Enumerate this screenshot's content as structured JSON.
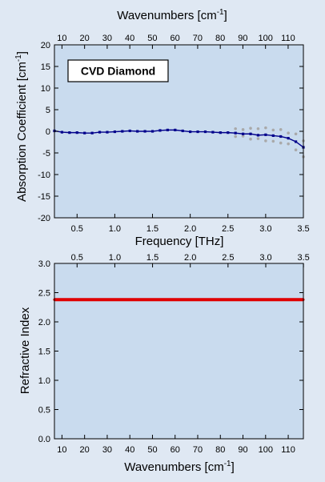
{
  "figure": {
    "background": "#dfe8f3",
    "plot_background": "#c9dbee"
  },
  "chart_data": [
    {
      "type": "scatter",
      "panel": "top",
      "sample_label": "CVD Diamond",
      "x_label": "Frequency  [THz]",
      "y_label": "Absorption Coefficient [cm",
      "y_label_sup": "-1",
      "y_label_end": "]",
      "top_axis_label": "Wavenumbers  [cm",
      "top_axis_label_sup": "-1",
      "top_axis_label_end": "]",
      "xlim": [
        0.2,
        3.5
      ],
      "ylim": [
        -20,
        20
      ],
      "x_ticks": [
        "0.5",
        "1.0",
        "1.5",
        "2.0",
        "2.5",
        "3.0",
        "3.5"
      ],
      "y_ticks": [
        "20",
        "15",
        "10",
        "5",
        "0",
        "-5",
        "-10",
        "-15",
        "-20"
      ],
      "top_ticks": [
        "10",
        "20",
        "30",
        "40",
        "50",
        "60",
        "70",
        "80",
        "90",
        "100",
        "110"
      ],
      "grid": false,
      "colors": {
        "mean": "#00008b",
        "runs": "#a9a9a9"
      },
      "series": [
        {
          "role": "mean",
          "points": [
            [
              0.2,
              0.1
            ],
            [
              0.3,
              -0.2
            ],
            [
              0.4,
              -0.3
            ],
            [
              0.5,
              -0.3
            ],
            [
              0.6,
              -0.4
            ],
            [
              0.7,
              -0.4
            ],
            [
              0.8,
              -0.2
            ],
            [
              0.9,
              -0.2
            ],
            [
              1.0,
              -0.1
            ],
            [
              1.1,
              0.0
            ],
            [
              1.2,
              0.1
            ],
            [
              1.3,
              0.0
            ],
            [
              1.4,
              0.0
            ],
            [
              1.5,
              0.0
            ],
            [
              1.6,
              0.2
            ],
            [
              1.7,
              0.3
            ],
            [
              1.8,
              0.3
            ],
            [
              1.9,
              0.1
            ],
            [
              2.0,
              -0.1
            ],
            [
              2.1,
              -0.1
            ],
            [
              2.2,
              -0.1
            ],
            [
              2.3,
              -0.2
            ],
            [
              2.4,
              -0.3
            ],
            [
              2.5,
              -0.3
            ],
            [
              2.6,
              -0.4
            ],
            [
              2.7,
              -0.6
            ],
            [
              2.8,
              -0.6
            ],
            [
              2.9,
              -0.9
            ],
            [
              3.0,
              -0.8
            ],
            [
              3.1,
              -1.0
            ],
            [
              3.2,
              -1.2
            ],
            [
              3.3,
              -1.6
            ],
            [
              3.4,
              -2.4
            ],
            [
              3.5,
              -3.7
            ]
          ]
        },
        {
          "role": "runs",
          "points": [
            [
              2.6,
              0.6
            ],
            [
              2.7,
              -1.1
            ],
            [
              2.8,
              0.7
            ],
            [
              2.9,
              -1.7
            ],
            [
              3.0,
              0.8
            ],
            [
              3.1,
              -2.3
            ],
            [
              3.2,
              0.4
            ],
            [
              3.3,
              -2.9
            ],
            [
              3.4,
              -0.6
            ],
            [
              3.5,
              -5.9
            ],
            [
              2.6,
              -1.2
            ],
            [
              2.7,
              0.4
            ],
            [
              2.8,
              -1.8
            ],
            [
              2.9,
              0.6
            ],
            [
              3.0,
              -2.2
            ],
            [
              3.1,
              0.3
            ],
            [
              3.2,
              -2.7
            ],
            [
              3.3,
              -0.4
            ],
            [
              3.4,
              -4.3
            ],
            [
              3.5,
              -2.2
            ]
          ]
        }
      ]
    },
    {
      "type": "scatter",
      "panel": "bottom",
      "x_label": "Wavenumbers [cm",
      "x_label_sup": "-1",
      "x_label_end": "]",
      "y_label": "Refractive Index",
      "top_axis_label": "",
      "xlim": [
        6.67,
        116.7
      ],
      "ylim": [
        0.0,
        3.0
      ],
      "x_ticks": [
        "10",
        "20",
        "30",
        "40",
        "50",
        "60",
        "70",
        "80",
        "90",
        "100",
        "110"
      ],
      "y_ticks": [
        "3.0",
        "2.5",
        "2.0",
        "1.5",
        "1.0",
        "0.5",
        "0.0"
      ],
      "top_ticks": [
        "0.5",
        "1.0",
        "1.5",
        "2.0",
        "2.5",
        "3.0",
        "3.5"
      ],
      "grid": false,
      "colors": {
        "refractive_index": "#e00000"
      },
      "series": [
        {
          "role": "refractive_index",
          "x_range": [
            6.67,
            116.7
          ],
          "value": 2.38
        }
      ]
    }
  ]
}
